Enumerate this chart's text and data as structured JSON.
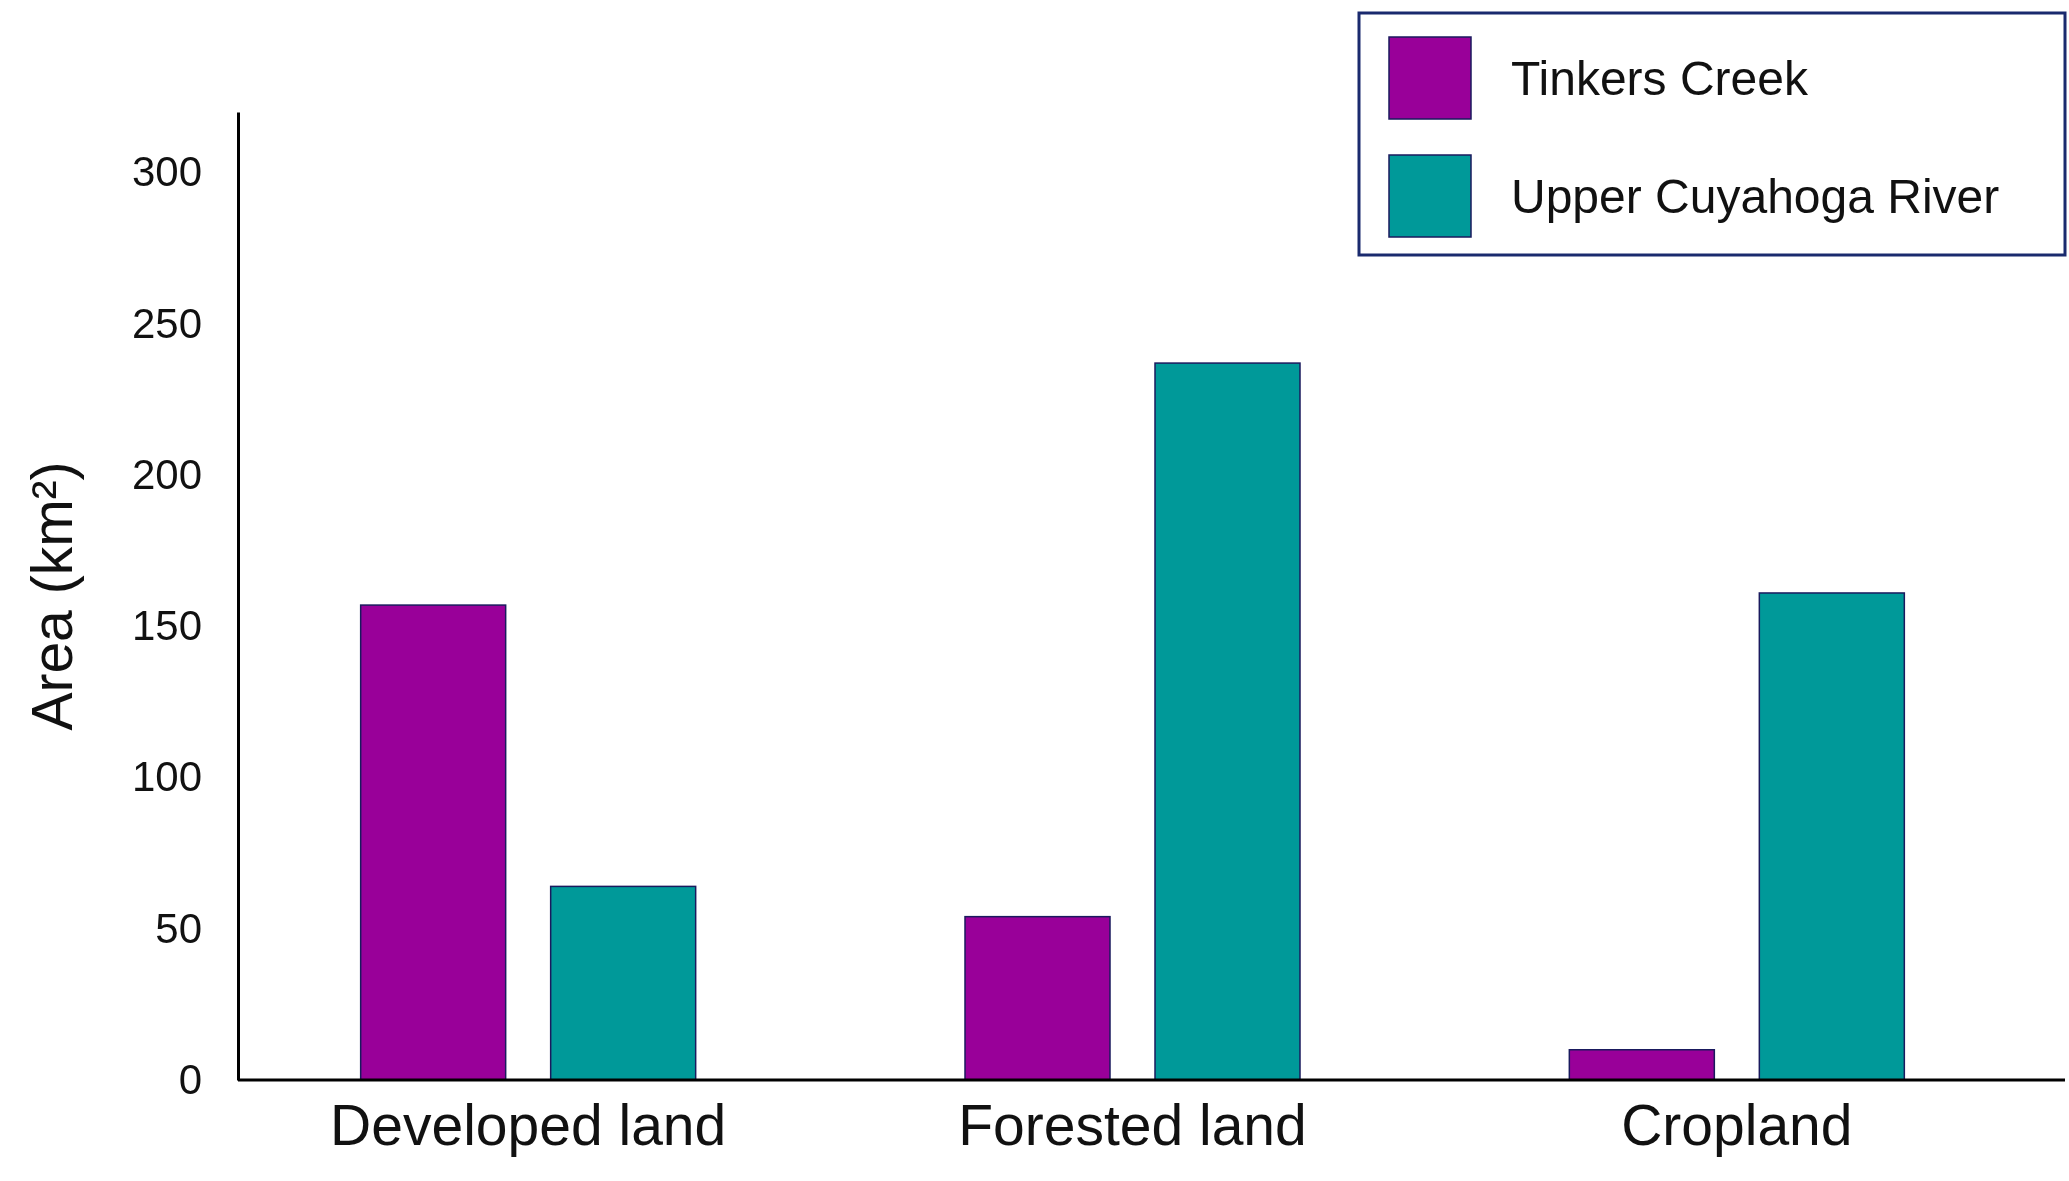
{
  "chart_data": {
    "type": "bar",
    "ylabel": "Area (km²)",
    "categories": [
      "Developed land",
      "Forested land",
      "Cropland"
    ],
    "series": [
      {
        "name": "Tinkers Creek",
        "color": "#990099",
        "values": [
          157,
          54,
          10
        ]
      },
      {
        "name": "Upper Cuyahoga River",
        "color": "#009999",
        "values": [
          64,
          237,
          161
        ]
      }
    ],
    "ylim": [
      0,
      320
    ],
    "yticks": [
      0,
      50,
      100,
      150,
      200,
      250,
      300
    ],
    "grid": false,
    "legend": "top right"
  }
}
